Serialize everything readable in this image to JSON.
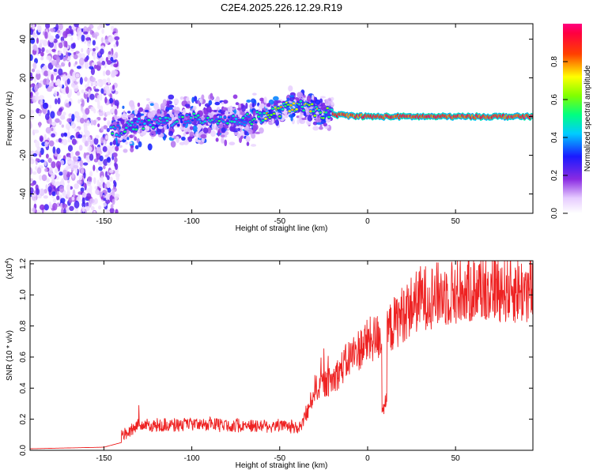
{
  "chart_data": [
    {
      "type": "heatmap",
      "title": "C2E4.2025.226.12.29.R19",
      "xlabel": "Height of straight line (km)",
      "ylabel": "Frequency (Hz)",
      "xlim": [
        -192,
        94
      ],
      "ylim": [
        -50,
        48
      ],
      "xticks": [
        "-150",
        "-100",
        "-50",
        "0",
        "50"
      ],
      "yticks": [
        "-40",
        "-20",
        "0",
        "20",
        "40"
      ],
      "colorbar": {
        "label": "Normalized spectral amplitude",
        "range": [
          0,
          1
        ],
        "ticks": [
          "0.0",
          "0.2",
          "0.4",
          "0.6",
          "0.8"
        ],
        "colormap": "white-purple-blue-cyan-green-yellow-red-magenta"
      },
      "description_of_data": {
        "noise_region_x": [
          -192,
          -140
        ],
        "signal_track": [
          {
            "x": -145,
            "y": -8
          },
          {
            "x": -130,
            "y": -4
          },
          {
            "x": -110,
            "y": -2
          },
          {
            "x": -90,
            "y": -1
          },
          {
            "x": -70,
            "y": -2
          },
          {
            "x": -60,
            "y": 0
          },
          {
            "x": -50,
            "y": 3
          },
          {
            "x": -42,
            "y": 6
          },
          {
            "x": -30,
            "y": 3
          },
          {
            "x": -20,
            "y": 1
          },
          {
            "x": 0,
            "y": 0
          },
          {
            "x": 20,
            "y": 0
          },
          {
            "x": 94,
            "y": 0
          }
        ]
      }
    },
    {
      "type": "line",
      "xlabel": "Height of straight line (km)",
      "ylabel": "SNR (10 * v/v)",
      "scale_label": "(x10",
      "scale_exp": "4",
      "xlim": [
        -192,
        94
      ],
      "ylim": [
        0,
        1.22
      ],
      "xticks": [
        "-150",
        "-100",
        "-50",
        "0",
        "50"
      ],
      "yticks": [
        "0.0",
        "0.2",
        "0.4",
        "0.6",
        "0.8",
        "1.0",
        "1.2"
      ],
      "color": "#ee2222",
      "envelope": [
        {
          "x": -192,
          "y": 0.01
        },
        {
          "x": -150,
          "y": 0.02
        },
        {
          "x": -140,
          "y": 0.05
        },
        {
          "x": -130,
          "y": 0.12
        },
        {
          "x": -110,
          "y": 0.12
        },
        {
          "x": -90,
          "y": 0.13
        },
        {
          "x": -70,
          "y": 0.12
        },
        {
          "x": -50,
          "y": 0.12
        },
        {
          "x": -38,
          "y": 0.1
        },
        {
          "x": -34,
          "y": 0.25
        },
        {
          "x": -30,
          "y": 0.4
        },
        {
          "x": -20,
          "y": 0.45
        },
        {
          "x": -10,
          "y": 0.6
        },
        {
          "x": 0,
          "y": 0.7
        },
        {
          "x": 10,
          "y": 0.75
        },
        {
          "x": 20,
          "y": 0.88
        },
        {
          "x": 30,
          "y": 0.98
        },
        {
          "x": 50,
          "y": 1.02
        },
        {
          "x": 70,
          "y": 1.05
        },
        {
          "x": 94,
          "y": 1.02
        }
      ]
    }
  ]
}
